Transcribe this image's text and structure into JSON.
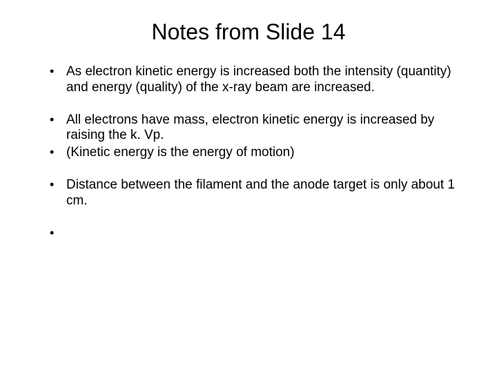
{
  "slide": {
    "title": "Notes from Slide 14",
    "title_fontsize": 32,
    "body_fontsize": 19,
    "background_color": "#ffffff",
    "text_color": "#000000",
    "bullets": [
      "As electron kinetic energy is increased both the intensity (quantity) and energy (quality) of the x-ray beam are increased.",
      "All electrons have mass, electron kinetic energy is increased by raising the k. Vp.",
      "(Kinetic energy is the energy of motion)",
      "Distance between the filament and the anode target is only about 1 cm.",
      ""
    ]
  }
}
